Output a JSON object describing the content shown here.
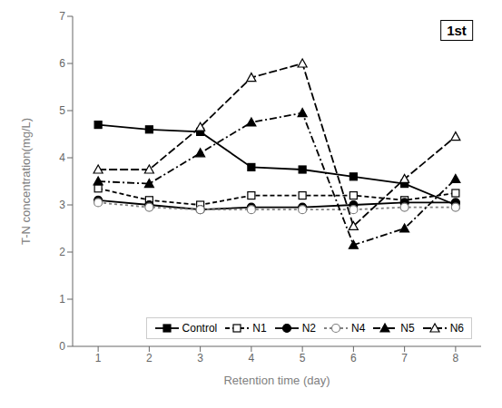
{
  "chart_data": {
    "type": "line",
    "title": "1st",
    "xlabel": "Retention time (day)",
    "ylabel": "T-N concentration(mg/L)",
    "x": [
      1,
      2,
      3,
      4,
      5,
      6,
      7,
      8
    ],
    "series": [
      {
        "name": "Control",
        "color": "black",
        "marker": "filled_square",
        "line_style": "solid",
        "values": [
          4.7,
          4.6,
          4.55,
          3.8,
          3.75,
          3.6,
          3.45,
          3.0
        ]
      },
      {
        "name": "N1",
        "color": "black",
        "marker": "open_square",
        "line_style": "dashed",
        "values": [
          3.35,
          3.1,
          3.0,
          3.2,
          3.2,
          3.2,
          3.1,
          3.25
        ]
      },
      {
        "name": "N2",
        "color": "black",
        "marker": "filled_circle",
        "line_style": "solid",
        "values": [
          3.1,
          3.0,
          2.9,
          2.95,
          2.95,
          3.0,
          3.05,
          3.05
        ]
      },
      {
        "name": "N4",
        "color": "gray",
        "marker": "open_circle",
        "line_style": "dotted",
        "values": [
          3.05,
          2.95,
          2.9,
          2.9,
          2.9,
          2.9,
          2.95,
          2.95
        ]
      },
      {
        "name": "N5",
        "color": "black",
        "marker": "filled_triangle",
        "line_style": "dashdot",
        "values": [
          3.5,
          3.45,
          4.1,
          4.75,
          4.95,
          2.15,
          2.5,
          3.55
        ]
      },
      {
        "name": "N6",
        "color": "black",
        "marker": "open_triangle",
        "line_style": "longdashed",
        "values": [
          3.75,
          3.75,
          4.65,
          5.7,
          6.0,
          2.55,
          3.55,
          4.45
        ]
      }
    ],
    "xlim": [
      0.5,
      8.5
    ],
    "xticks": [
      1,
      2,
      3,
      4,
      5,
      6,
      7,
      8
    ],
    "ylim": [
      0,
      7
    ],
    "yticks": [
      0,
      1,
      2,
      3,
      4,
      5,
      6,
      7
    ],
    "grid": false,
    "legend": "lower right"
  }
}
